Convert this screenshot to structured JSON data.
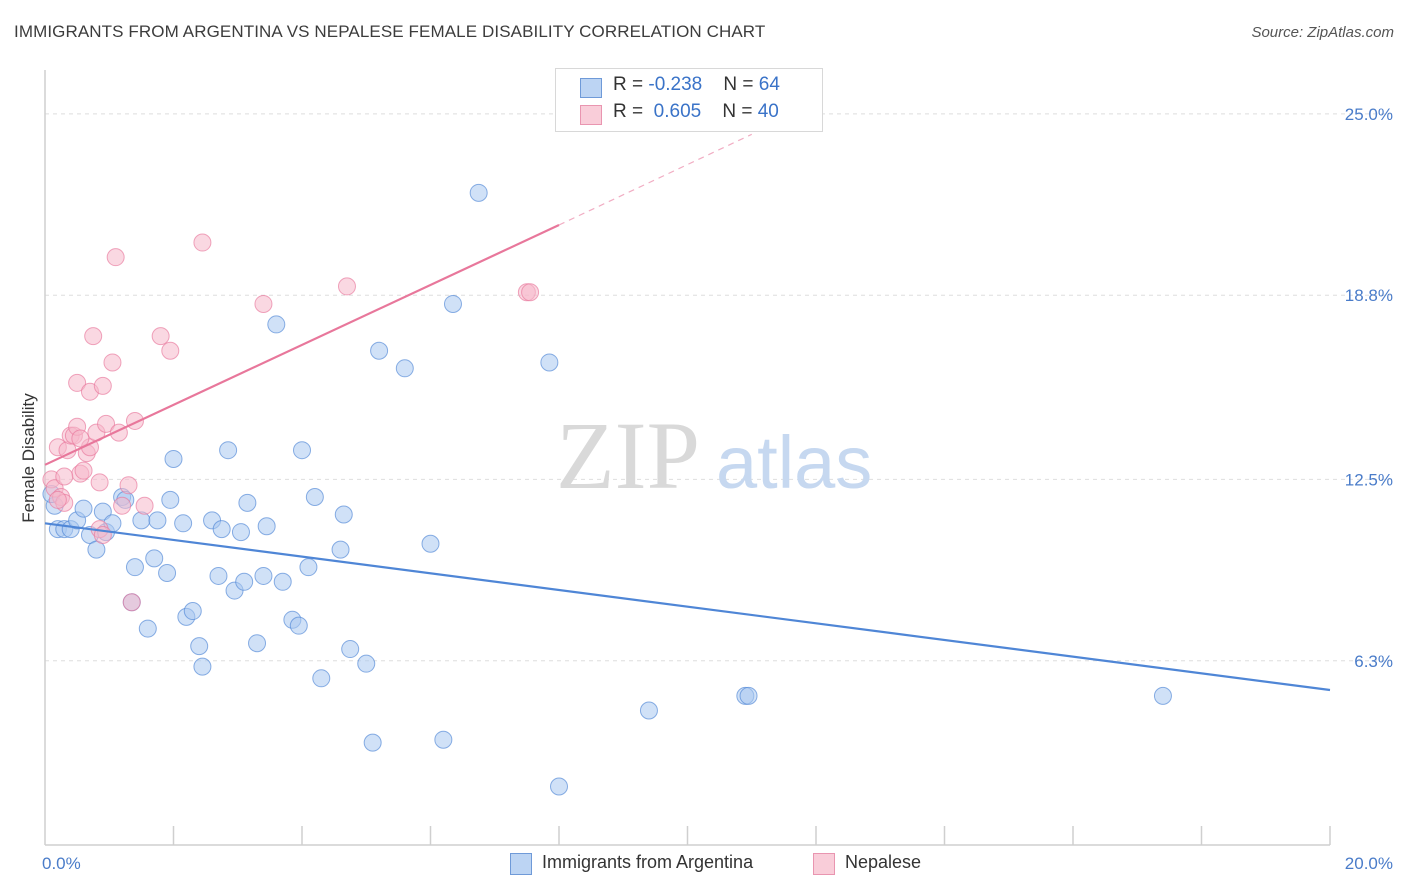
{
  "header": {
    "title": "IMMIGRANTS FROM ARGENTINA VS NEPALESE FEMALE DISABILITY CORRELATION CHART",
    "source": "Source: ZipAtlas.com"
  },
  "watermark": {
    "zip": "ZIP",
    "atlas": "atlas"
  },
  "legend": {
    "rows": [
      {
        "r_label": "R = ",
        "r_value": "-0.238",
        "n_label": "N = ",
        "n_value": "64",
        "color": "#a9c8f0"
      },
      {
        "r_label": "R = ",
        "r_value": " 0.605",
        "n_label": "N = ",
        "n_value": "40",
        "color": "#f5b8cb"
      }
    ]
  },
  "chart_data": {
    "type": "scatter",
    "title": "IMMIGRANTS FROM ARGENTINA VS NEPALESE FEMALE DISABILITY CORRELATION CHART",
    "xlabel": "",
    "ylabel": "Female Disability",
    "xlim": [
      0,
      20
    ],
    "ylim": [
      0,
      26.5
    ],
    "x_ticks": [
      {
        "value": 0,
        "label": "0.0%"
      },
      {
        "value": 20,
        "label": "20.0%"
      }
    ],
    "y_ticks": [
      {
        "value": 6.3,
        "label": "6.3%"
      },
      {
        "value": 12.5,
        "label": "12.5%"
      },
      {
        "value": 18.8,
        "label": "18.8%"
      },
      {
        "value": 25.0,
        "label": "25.0%"
      }
    ],
    "grid": "horizontal dashed",
    "legend_position": "top-center",
    "series": [
      {
        "name": "Immigrants from Argentina",
        "color": "#4f86d6",
        "fill": "#a9c8f0",
        "trend": {
          "x0": 0.0,
          "y0": 11.0,
          "x1": 20.0,
          "y1": 5.3
        },
        "points": [
          [
            0.15,
            11.6
          ],
          [
            0.2,
            10.8
          ],
          [
            0.3,
            10.8
          ],
          [
            0.4,
            10.8
          ],
          [
            0.5,
            11.1
          ],
          [
            0.6,
            11.5
          ],
          [
            0.7,
            10.6
          ],
          [
            0.8,
            10.1
          ],
          [
            0.9,
            11.4
          ],
          [
            0.95,
            10.7
          ],
          [
            1.05,
            11.0
          ],
          [
            1.2,
            11.9
          ],
          [
            1.25,
            11.8
          ],
          [
            1.35,
            8.3
          ],
          [
            1.4,
            9.5
          ],
          [
            1.5,
            11.1
          ],
          [
            1.6,
            7.4
          ],
          [
            1.7,
            9.8
          ],
          [
            1.75,
            11.1
          ],
          [
            1.9,
            9.3
          ],
          [
            1.95,
            11.8
          ],
          [
            2.0,
            13.2
          ],
          [
            2.15,
            11.0
          ],
          [
            2.2,
            7.8
          ],
          [
            2.3,
            8.0
          ],
          [
            2.4,
            6.8
          ],
          [
            2.45,
            6.1
          ],
          [
            2.6,
            11.1
          ],
          [
            2.7,
            9.2
          ],
          [
            2.75,
            10.8
          ],
          [
            2.85,
            13.5
          ],
          [
            2.95,
            8.7
          ],
          [
            3.05,
            10.7
          ],
          [
            3.1,
            9.0
          ],
          [
            3.15,
            11.7
          ],
          [
            3.3,
            6.9
          ],
          [
            3.4,
            9.2
          ],
          [
            3.45,
            10.9
          ],
          [
            3.6,
            17.8
          ],
          [
            3.7,
            9.0
          ],
          [
            3.85,
            7.7
          ],
          [
            3.95,
            7.5
          ],
          [
            4.0,
            13.5
          ],
          [
            4.1,
            9.5
          ],
          [
            4.2,
            11.9
          ],
          [
            4.3,
            5.7
          ],
          [
            4.6,
            10.1
          ],
          [
            4.65,
            11.3
          ],
          [
            4.75,
            6.7
          ],
          [
            5.0,
            6.2
          ],
          [
            5.1,
            3.5
          ],
          [
            5.2,
            16.9
          ],
          [
            5.6,
            16.3
          ],
          [
            6.0,
            10.3
          ],
          [
            6.2,
            3.6
          ],
          [
            6.35,
            18.5
          ],
          [
            6.75,
            22.3
          ],
          [
            8.0,
            2.0
          ],
          [
            7.85,
            16.5
          ],
          [
            9.4,
            4.6
          ],
          [
            10.9,
            5.1
          ],
          [
            10.95,
            5.1
          ],
          [
            17.4,
            5.1
          ],
          [
            0.1,
            12.0
          ]
        ]
      },
      {
        "name": "Nepalese",
        "color": "#e8779b",
        "fill": "#f5b8cb",
        "trend": {
          "x0": 0.0,
          "y0": 13.0,
          "x1": 8.0,
          "y1": 21.2,
          "dash_to": {
            "x": 11.0,
            "y": 24.3
          }
        },
        "points": [
          [
            0.1,
            12.5
          ],
          [
            0.15,
            12.2
          ],
          [
            0.2,
            13.6
          ],
          [
            0.25,
            11.9
          ],
          [
            0.3,
            11.7
          ],
          [
            0.35,
            13.5
          ],
          [
            0.4,
            14.0
          ],
          [
            0.45,
            14.0
          ],
          [
            0.5,
            14.3
          ],
          [
            0.55,
            12.7
          ],
          [
            0.5,
            15.8
          ],
          [
            0.6,
            12.8
          ],
          [
            0.65,
            13.4
          ],
          [
            0.7,
            13.6
          ],
          [
            0.75,
            17.4
          ],
          [
            0.7,
            15.5
          ],
          [
            0.8,
            14.1
          ],
          [
            0.85,
            10.8
          ],
          [
            0.85,
            12.4
          ],
          [
            0.9,
            15.7
          ],
          [
            0.95,
            14.4
          ],
          [
            1.05,
            16.5
          ],
          [
            1.15,
            14.1
          ],
          [
            1.2,
            11.6
          ],
          [
            1.3,
            12.3
          ],
          [
            1.35,
            8.3
          ],
          [
            1.4,
            14.5
          ],
          [
            1.55,
            11.6
          ],
          [
            1.8,
            17.4
          ],
          [
            1.95,
            16.9
          ],
          [
            2.45,
            20.6
          ],
          [
            3.4,
            18.5
          ],
          [
            4.7,
            19.1
          ],
          [
            7.5,
            18.9
          ],
          [
            7.55,
            18.9
          ],
          [
            1.1,
            20.1
          ],
          [
            0.2,
            11.8
          ],
          [
            0.3,
            12.6
          ],
          [
            0.55,
            13.9
          ],
          [
            0.9,
            10.6
          ]
        ]
      }
    ]
  },
  "bottom_legend": {
    "items": [
      {
        "label": "Immigrants from Argentina",
        "color": "#a9c8f0",
        "border": "#4f86d6"
      },
      {
        "label": "Nepalese",
        "color": "#f5b8cb",
        "border": "#e8779b"
      }
    ]
  }
}
